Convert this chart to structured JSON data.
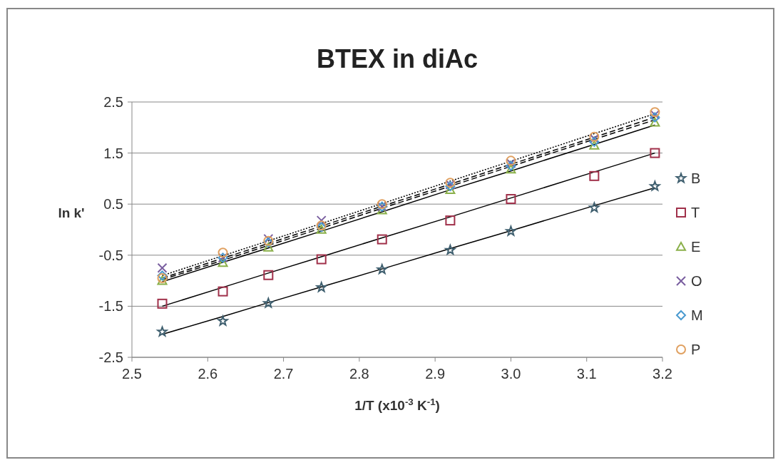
{
  "chart_data": {
    "type": "scatter",
    "title": "BTEX in diAc",
    "xlabel": "1/T (x10$^{-3}$ K$^{-1}$)",
    "ylabel": "ln k'",
    "x": [
      2.54,
      2.62,
      2.68,
      2.75,
      2.83,
      2.92,
      3.0,
      3.11,
      3.19
    ],
    "xlim": [
      2.5,
      3.2
    ],
    "xticks": [
      2.5,
      2.6,
      2.7,
      2.8,
      2.9,
      {
        "value": 3,
        "label": "3.0"
      },
      3.1,
      3.2
    ],
    "ylim": [
      -2.5,
      2.5
    ],
    "yticks": [
      -2.5,
      -1.5,
      -0.5,
      0.5,
      1.5,
      2.5
    ],
    "grid": "y",
    "legend": "right",
    "series": [
      {
        "name": "B",
        "color": "#3f5f6f",
        "marker": "star",
        "values": [
          -2.0,
          -1.79,
          -1.44,
          -1.13,
          -0.78,
          -0.4,
          -0.03,
          0.43,
          0.85
        ]
      },
      {
        "name": "T",
        "color": "#a0304a",
        "marker": "square",
        "values": [
          -1.45,
          -1.21,
          -0.89,
          -0.58,
          -0.19,
          0.18,
          0.6,
          1.05,
          1.5
        ]
      },
      {
        "name": "E",
        "color": "#8ab04a",
        "marker": "triangle",
        "values": [
          -1.0,
          -0.65,
          -0.35,
          0.0,
          0.38,
          0.78,
          1.18,
          1.65,
          2.1
        ]
      },
      {
        "name": "O",
        "color": "#7a5fa0",
        "marker": "cross",
        "values": [
          -0.75,
          -0.55,
          -0.18,
          0.18,
          0.45,
          0.88,
          1.3,
          1.78,
          2.25
        ]
      },
      {
        "name": "M",
        "color": "#4a9ad0",
        "marker": "diamond",
        "values": [
          -0.9,
          -0.55,
          -0.25,
          0.05,
          0.45,
          0.85,
          1.25,
          1.72,
          2.2
        ]
      },
      {
        "name": "P",
        "color": "#e0a060",
        "marker": "circle",
        "values": [
          -0.95,
          -0.45,
          -0.22,
          0.08,
          0.5,
          0.92,
          1.35,
          1.82,
          2.3
        ]
      },
      {
        "type": "line",
        "color": "#000000",
        "line_style": "solid",
        "values": [
          -2.05,
          -1.7,
          -1.43,
          -1.12,
          -0.77,
          -0.37,
          -0.02,
          0.47,
          0.82
        ]
      },
      {
        "type": "line",
        "color": "#000000",
        "line_style": "solid",
        "values": [
          -1.5,
          -1.13,
          -0.85,
          -0.53,
          -0.16,
          0.25,
          0.62,
          1.13,
          1.5
        ]
      },
      {
        "type": "line",
        "color": "#000000",
        "line_style": "solid",
        "values": [
          -1.02,
          -0.64,
          -0.36,
          -0.03,
          0.35,
          0.78,
          1.15,
          1.67,
          2.05
        ]
      },
      {
        "type": "line",
        "color": "#000000",
        "line_style": "dashed",
        "values": [
          -0.95,
          -0.56,
          -0.27,
          0.07,
          0.46,
          0.89,
          1.28,
          1.81,
          2.2
        ]
      },
      {
        "type": "line",
        "color": "#000000",
        "line_style": "dashed",
        "values": [
          -0.98,
          -0.6,
          -0.31,
          0.03,
          0.42,
          0.85,
          1.24,
          1.77,
          2.15
        ]
      },
      {
        "type": "line",
        "color": "#000000",
        "line_style": "dotted",
        "values": [
          -0.9,
          -0.51,
          -0.22,
          0.12,
          0.51,
          0.95,
          1.34,
          1.88,
          2.27
        ]
      }
    ]
  }
}
